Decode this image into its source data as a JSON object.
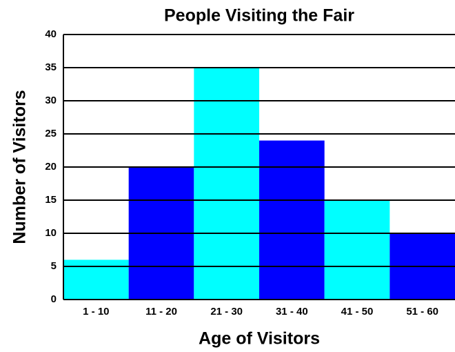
{
  "chart_data": {
    "type": "bar",
    "title": "People Visiting the Fair",
    "x_label": "Age of Visitors",
    "y_label": "Number of Visitors",
    "categories": [
      "1 - 10",
      "11 - 20",
      "21 - 30",
      "31 - 40",
      "41 - 50",
      "51 - 60"
    ],
    "values": [
      6,
      20,
      35,
      24,
      15,
      10
    ],
    "colors": [
      "#00ffff",
      "#0000ff",
      "#00ffff",
      "#0000ff",
      "#00ffff",
      "#0000ff"
    ],
    "ylim": [
      0,
      40
    ],
    "yticks": [
      0,
      5,
      10,
      15,
      20,
      25,
      30,
      35,
      40
    ],
    "grid": true
  }
}
